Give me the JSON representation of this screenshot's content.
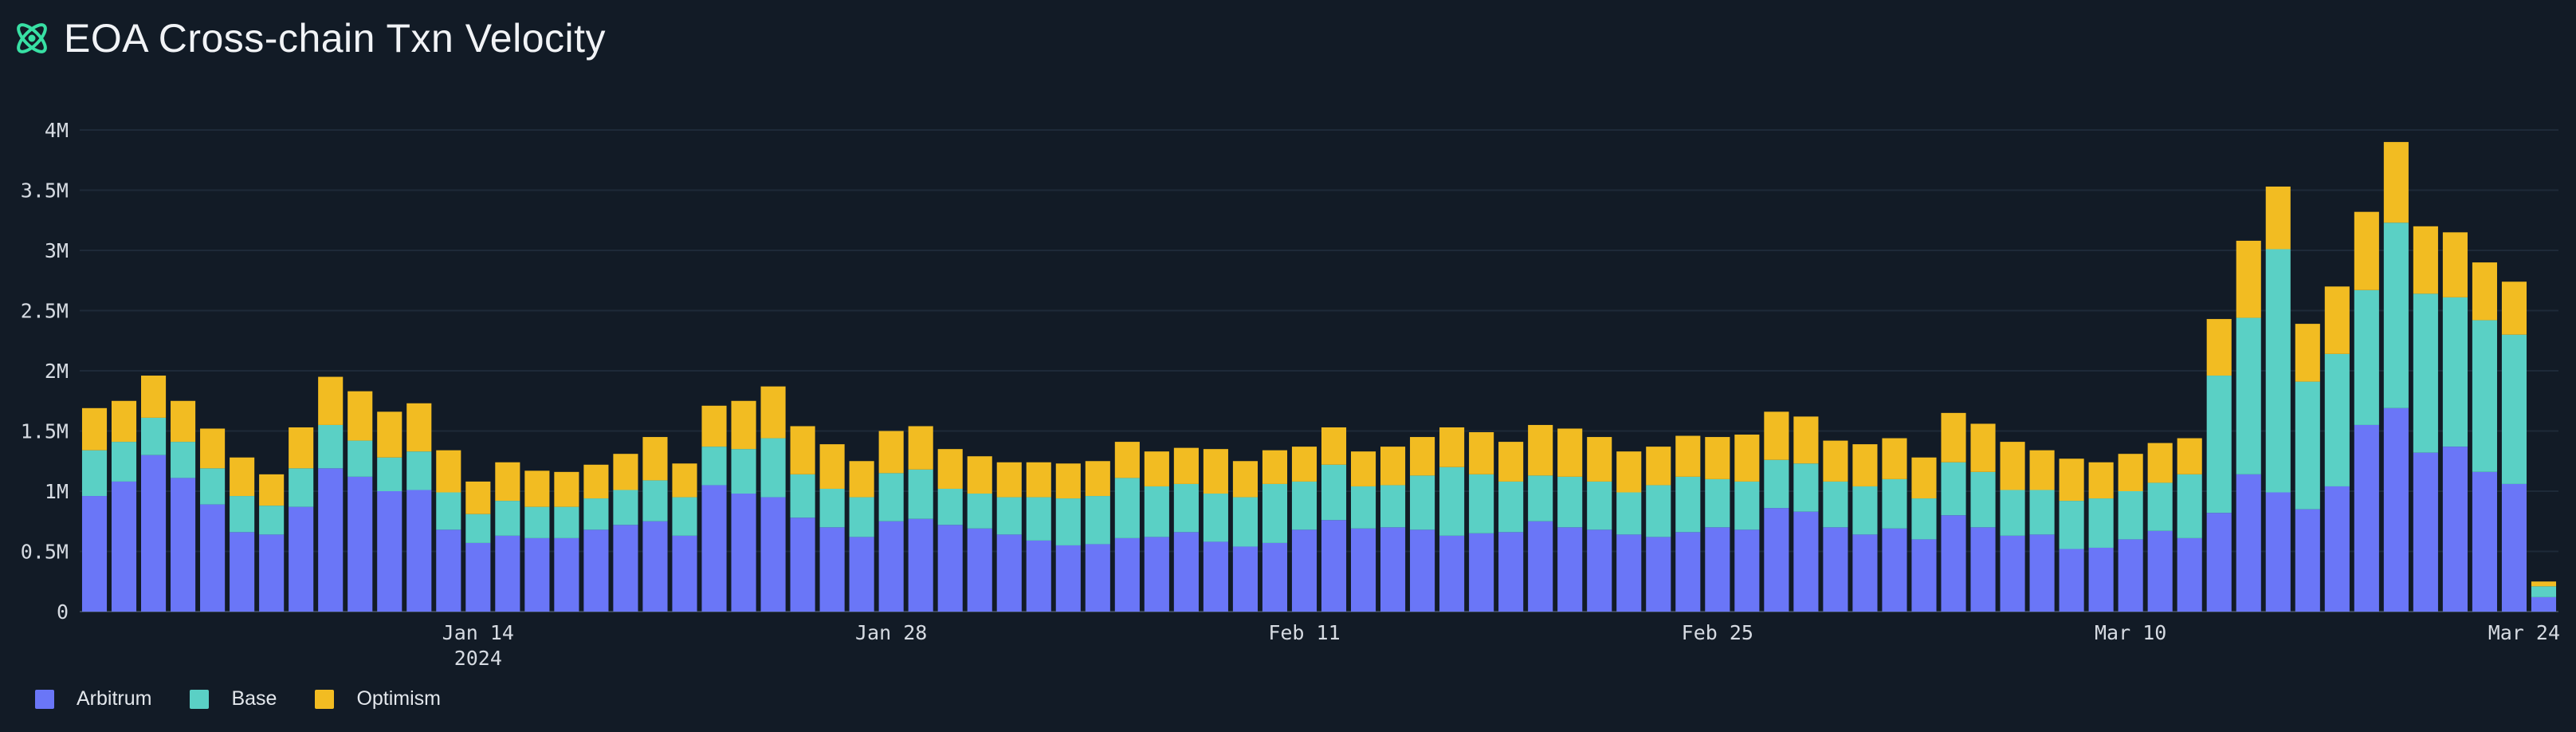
{
  "header": {
    "title": "EOA Cross-chain Txn Velocity",
    "logo_icon": "crosschain-logo-icon"
  },
  "colors": {
    "background": "#121b26",
    "Arbitrum": "#6a76f7",
    "Base": "#5ad0c5",
    "Optimism": "#f2bc22",
    "accent": "#38e0a4"
  },
  "legend": [
    {
      "name": "Arbitrum",
      "color": "#6a76f7"
    },
    {
      "name": "Base",
      "color": "#5ad0c5"
    },
    {
      "name": "Optimism",
      "color": "#f2bc22"
    }
  ],
  "chart_data": {
    "type": "bar",
    "stacked": true,
    "title": "EOA Cross-chain Txn Velocity",
    "xlabel": "",
    "ylabel": "",
    "ylim": [
      0,
      4000000
    ],
    "y_ticks": [
      {
        "value": 0,
        "label": "0"
      },
      {
        "value": 500000,
        "label": "0.5M"
      },
      {
        "value": 1000000,
        "label": "1M"
      },
      {
        "value": 1500000,
        "label": "1.5M"
      },
      {
        "value": 2000000,
        "label": "2M"
      },
      {
        "value": 2500000,
        "label": "2.5M"
      },
      {
        "value": 3000000,
        "label": "3M"
      },
      {
        "value": 3500000,
        "label": "3.5M"
      },
      {
        "value": 4000000,
        "label": "4M"
      }
    ],
    "x_ticks": [
      {
        "index": 13,
        "label": "Jan 14",
        "sublabel": "2024"
      },
      {
        "index": 27,
        "label": "Jan 28",
        "sublabel": ""
      },
      {
        "index": 41,
        "label": "Feb 11",
        "sublabel": ""
      },
      {
        "index": 55,
        "label": "Feb 25",
        "sublabel": ""
      },
      {
        "index": 69,
        "label": "Mar 10",
        "sublabel": ""
      },
      {
        "index": 83,
        "label": "Mar 24",
        "sublabel": ""
      }
    ],
    "x_start": "2024-01-01",
    "x_end": "2024-03-25",
    "legend_position": "bottom-left",
    "grid": true,
    "series": [
      {
        "name": "Arbitrum",
        "values": [
          960000,
          1080000,
          1300000,
          1110000,
          890000,
          660000,
          640000,
          870000,
          1190000,
          1120000,
          1000000,
          1010000,
          680000,
          570000,
          630000,
          610000,
          610000,
          680000,
          720000,
          750000,
          630000,
          1050000,
          980000,
          950000,
          780000,
          700000,
          620000,
          750000,
          770000,
          720000,
          690000,
          640000,
          590000,
          550000,
          560000,
          610000,
          620000,
          660000,
          580000,
          540000,
          570000,
          680000,
          760000,
          690000,
          700000,
          680000,
          630000,
          650000,
          660000,
          750000,
          700000,
          680000,
          640000,
          620000,
          660000,
          700000,
          680000,
          860000,
          830000,
          700000,
          640000,
          690000,
          600000,
          800000,
          700000,
          630000,
          640000,
          520000,
          530000,
          600000,
          670000,
          610000,
          820000,
          1140000,
          990000,
          850000,
          1040000,
          1550000,
          1690000,
          1320000,
          1370000,
          1160000,
          1060000,
          120000
        ]
      },
      {
        "name": "Base",
        "values": [
          380000,
          330000,
          310000,
          300000,
          300000,
          300000,
          240000,
          320000,
          360000,
          300000,
          280000,
          320000,
          310000,
          240000,
          290000,
          260000,
          260000,
          260000,
          290000,
          340000,
          320000,
          320000,
          370000,
          490000,
          360000,
          320000,
          330000,
          400000,
          410000,
          300000,
          290000,
          310000,
          360000,
          390000,
          400000,
          500000,
          420000,
          400000,
          400000,
          410000,
          490000,
          400000,
          460000,
          350000,
          350000,
          450000,
          570000,
          490000,
          420000,
          380000,
          420000,
          400000,
          350000,
          430000,
          460000,
          400000,
          400000,
          400000,
          400000,
          380000,
          400000,
          410000,
          340000,
          440000,
          460000,
          380000,
          370000,
          400000,
          410000,
          400000,
          400000,
          530000,
          1140000,
          1300000,
          2020000,
          1060000,
          1100000,
          1120000,
          1540000,
          1320000,
          1240000,
          1260000,
          1240000,
          90000
        ]
      },
      {
        "name": "Optimism",
        "values": [
          350000,
          340000,
          350000,
          340000,
          330000,
          320000,
          260000,
          340000,
          400000,
          410000,
          380000,
          400000,
          350000,
          270000,
          320000,
          300000,
          290000,
          280000,
          300000,
          360000,
          280000,
          340000,
          400000,
          430000,
          400000,
          370000,
          300000,
          350000,
          360000,
          330000,
          310000,
          290000,
          290000,
          290000,
          290000,
          300000,
          290000,
          300000,
          370000,
          300000,
          280000,
          290000,
          310000,
          290000,
          320000,
          320000,
          330000,
          350000,
          330000,
          420000,
          400000,
          370000,
          340000,
          320000,
          340000,
          350000,
          390000,
          400000,
          390000,
          340000,
          350000,
          340000,
          340000,
          410000,
          400000,
          400000,
          330000,
          350000,
          300000,
          310000,
          330000,
          300000,
          470000,
          640000,
          520000,
          480000,
          560000,
          650000,
          670000,
          560000,
          540000,
          480000,
          440000,
          40000
        ]
      }
    ]
  }
}
